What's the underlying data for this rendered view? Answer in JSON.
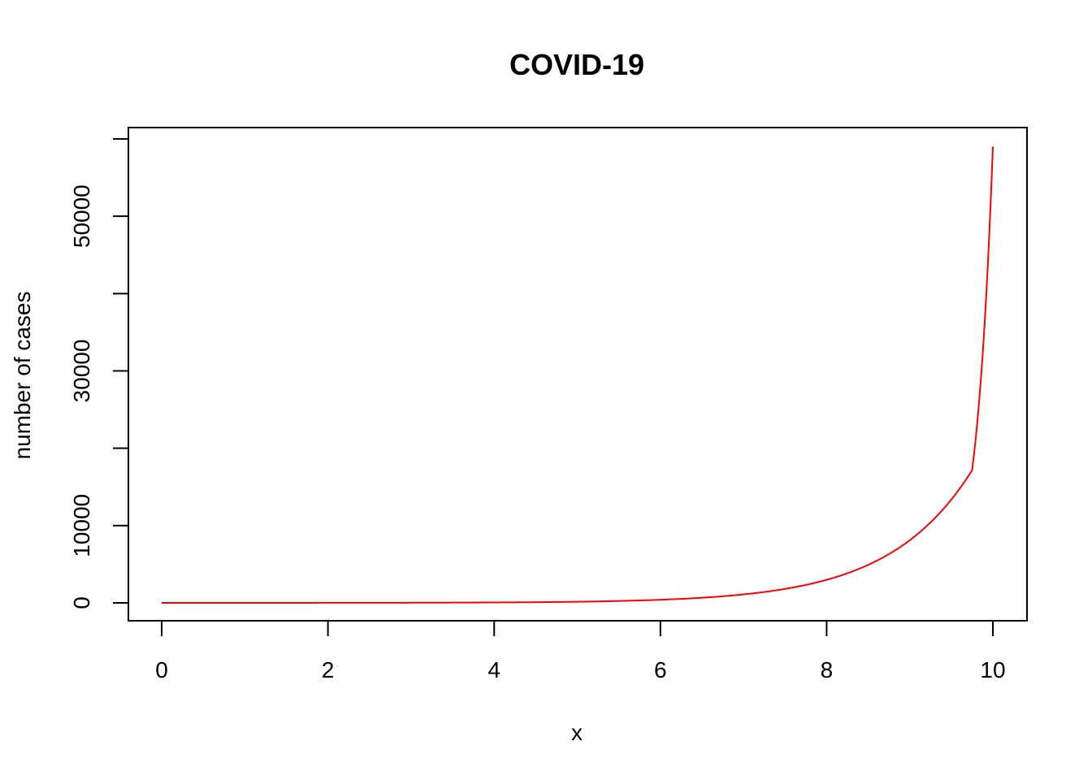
{
  "chart_data": {
    "type": "line",
    "title": "COVID-19",
    "xlabel": "x",
    "ylabel": "number of cases",
    "xlim": [
      0,
      10
    ],
    "ylim": [
      0,
      60000
    ],
    "x_ticks": [
      0,
      2,
      4,
      6,
      8,
      10
    ],
    "x_tick_labels": [
      "0",
      "2",
      "4",
      "6",
      "8",
      "10"
    ],
    "y_ticks": [
      0,
      10000,
      20000,
      30000,
      40000,
      50000,
      60000
    ],
    "y_tick_labels": [
      "0",
      "10000",
      "",
      "30000",
      "",
      "50000",
      ""
    ],
    "grid": false,
    "series": [
      {
        "color": "#ff0000",
        "x": [
          0,
          1,
          2,
          3,
          4,
          4.5,
          5,
          5.5,
          6,
          6.5,
          7,
          7.25,
          7.5,
          7.75,
          8,
          8.25,
          8.5,
          8.75,
          9,
          9.25,
          9.5,
          9.75,
          10
        ],
        "values": [
          1,
          3,
          8,
          20,
          55,
          90,
          148,
          245,
          403,
          665,
          1097,
          1408,
          1808,
          2322,
          2981,
          3827,
          4915,
          6311,
          8103,
          10405,
          13360,
          17155,
          59000
        ]
      }
    ]
  }
}
